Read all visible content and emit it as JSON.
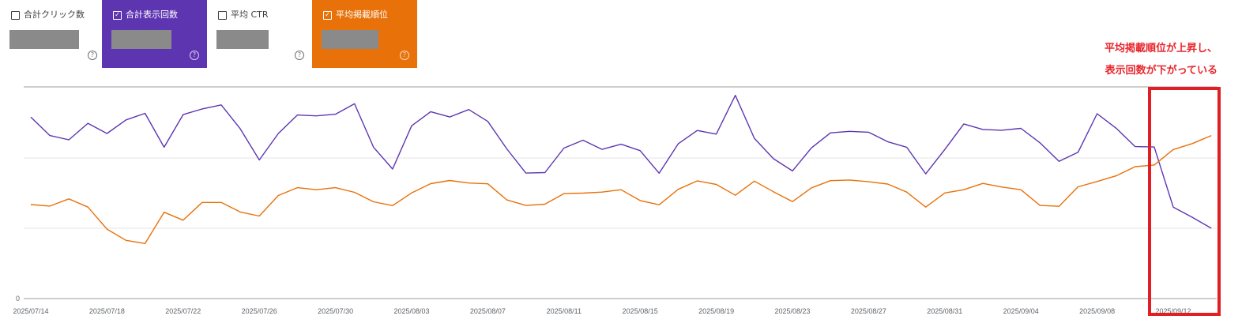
{
  "metrics": [
    {
      "label": "合計クリック数",
      "checked": false,
      "bg": "#ffffff",
      "fg": "#3c4043",
      "redact_width": 88
    },
    {
      "label": "合計表示回数",
      "checked": true,
      "bg": "#5e35b1",
      "fg": "#ffffff",
      "redact_width": 76
    },
    {
      "label": "平均 CTR",
      "checked": false,
      "bg": "#ffffff",
      "fg": "#3c4043",
      "redact_width": 66
    },
    {
      "label": "平均掲載順位",
      "checked": true,
      "bg": "#e8710a",
      "fg": "#ffffff",
      "redact_width": 72
    }
  ],
  "annotation": {
    "line1": "平均掲載順位が上昇し、",
    "line2": "表示回数が下がっている",
    "color": "#e8262d"
  },
  "chart_data": {
    "type": "line",
    "x_tick_labels": [
      "2025/07/14",
      "2025/07/18",
      "2025/07/22",
      "2025/07/26",
      "2025/07/30",
      "2025/08/03",
      "2025/08/07",
      "2025/08/11",
      "2025/08/15",
      "2025/08/19",
      "2025/08/23",
      "2025/08/27",
      "2025/08/31",
      "2025/09/04",
      "2025/09/08",
      "2025/09/12"
    ],
    "y_tick_labels": [
      "0"
    ],
    "ylim": [
      0,
      100
    ],
    "grid": true,
    "x_start": "2025/07/14",
    "n_points": 63,
    "series": [
      {
        "color": "#5e35b1",
        "values": [
          85.7,
          77.0,
          75.0,
          82.8,
          78.0,
          84.4,
          87.5,
          71.5,
          86.9,
          89.6,
          91.5,
          80.2,
          65.5,
          78.0,
          86.7,
          86.3,
          87.1,
          92.0,
          71.5,
          61.2,
          81.6,
          88.3,
          85.8,
          89.3,
          83.7,
          70.7,
          59.3,
          59.5,
          71.1,
          74.8,
          70.5,
          72.9,
          69.9,
          59.2,
          73.1,
          79.4,
          77.7,
          96.0,
          75.7,
          66.1,
          60.3,
          71.2,
          78.3,
          79.0,
          78.6,
          74.1,
          71.5,
          58.9,
          70.4,
          82.5,
          79.9,
          79.5,
          80.4,
          73.6,
          64.8,
          69.1,
          87.3,
          80.5,
          71.8,
          71.6,
          43.2,
          38.4,
          33.2
        ],
        "values_note": "relative scale, axis values hidden"
      },
      {
        "color": "#e8710a",
        "values": [
          44.4,
          43.7,
          47.1,
          43.2,
          32.8,
          27.5,
          26.0,
          40.8,
          37.0,
          45.4,
          45.4,
          40.9,
          39.0,
          48.7,
          52.4,
          51.4,
          52.4,
          50.2,
          45.7,
          43.9,
          49.9,
          54.3,
          55.8,
          54.6,
          54.2,
          46.6,
          44.0,
          44.6,
          49.6,
          49.8,
          50.3,
          51.4,
          46.3,
          44.3,
          51.6,
          55.6,
          53.9,
          48.8,
          55.5,
          50.5,
          45.8,
          52.3,
          55.7,
          56.0,
          55.2,
          54.1,
          50.3,
          43.2,
          49.9,
          51.4,
          54.4,
          52.7,
          51.4,
          44.0,
          43.6,
          52.8,
          55.3,
          58.0,
          62.3,
          63.1,
          70.4,
          73.2,
          77.0
        ],
        "values_note": "relative scale, axis values hidden"
      }
    ]
  }
}
